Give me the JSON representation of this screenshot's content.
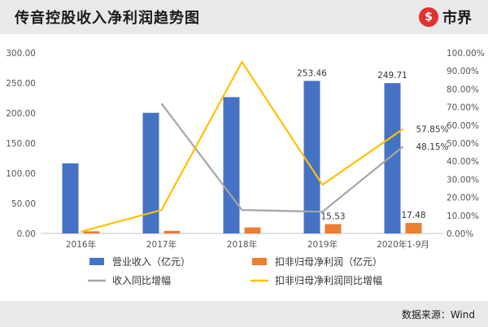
{
  "header": {
    "title": "传音控股收入净利润趋势图",
    "brand": "市界",
    "brand_glyph": "⑤"
  },
  "footer": {
    "source": "数据来源：Wind"
  },
  "colors": {
    "revenue": "#4472C4",
    "profit": "#ED7D31",
    "rev_growth": "#A5A5A5",
    "profit_growth": "#FFC000"
  },
  "chart_data": {
    "type": "bar",
    "categories": [
      "2016年",
      "2017年",
      "2018年",
      "2019年",
      "2020年1-9月"
    ],
    "series": [
      {
        "name": "营业收入（亿元）",
        "type": "bar",
        "axis": "left",
        "values": [
          116.5,
          200.4,
          226.5,
          253.46,
          249.71
        ]
      },
      {
        "name": "扣非归母净利润（亿元）",
        "type": "bar",
        "axis": "left",
        "values": [
          3.6,
          4.3,
          10.0,
          15.53,
          17.48
        ]
      },
      {
        "name": "收入同比增幅",
        "type": "line",
        "axis": "right",
        "values": [
          null,
          72.0,
          13.0,
          12.0,
          48.15
        ]
      },
      {
        "name": "扣非归母净利润同比增幅",
        "type": "line",
        "axis": "right",
        "values": [
          1.0,
          13.0,
          95.0,
          27.0,
          57.85
        ]
      }
    ],
    "ylim": [
      0,
      300
    ],
    "yticks": [
      "0.00",
      "50.00",
      "100.00",
      "150.00",
      "200.00",
      "250.00",
      "300.00"
    ],
    "y2lim": [
      0,
      100
    ],
    "y2ticks": [
      "0.00%",
      "10.00%",
      "20.00%",
      "30.00%",
      "40.00%",
      "50.00%",
      "60.00%",
      "70.00%",
      "80.00%",
      "90.00%",
      "100.00%"
    ],
    "data_labels": [
      {
        "series": 0,
        "index": 3,
        "text": "253.46"
      },
      {
        "series": 0,
        "index": 4,
        "text": "249.71"
      },
      {
        "series": 1,
        "index": 3,
        "text": "15.53"
      },
      {
        "series": 1,
        "index": 4,
        "text": "17.48"
      },
      {
        "series": 3,
        "index": 4,
        "text": "57.85%"
      },
      {
        "series": 2,
        "index": 4,
        "text": "48.15%"
      }
    ],
    "grid": false,
    "legend_position": "bottom"
  }
}
